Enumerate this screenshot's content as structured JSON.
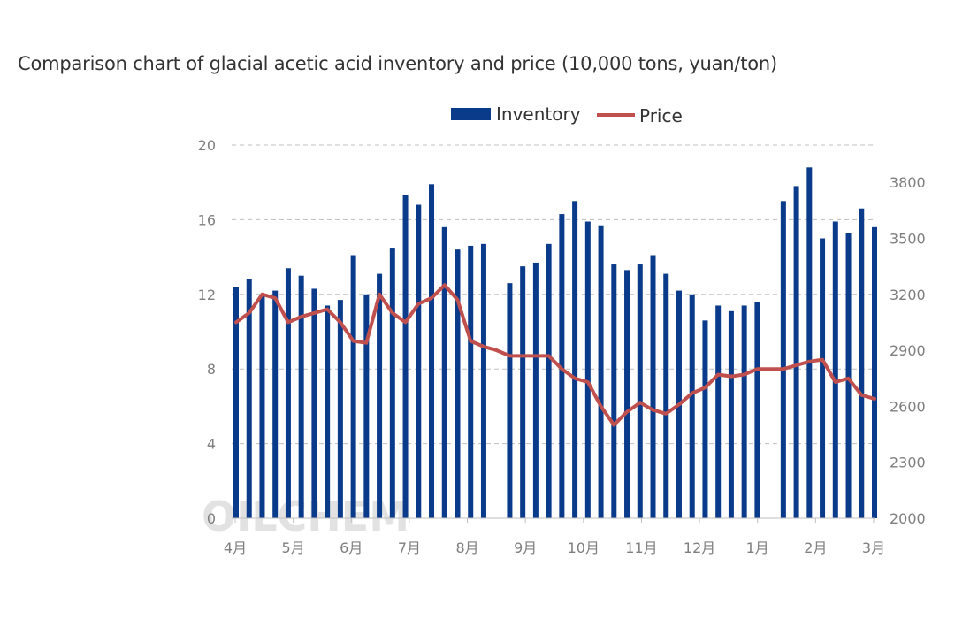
{
  "title": "Comparison chart of glacial acetic acid inventory and price (10,000 tons, yuan/ton)",
  "watermark": "OILCHEM",
  "chart_data": {
    "type": "bar+line",
    "title": "Comparison chart of glacial acetic acid inventory and price (10,000 tons, yuan/ton)",
    "legend": [
      "Inventory",
      "Price"
    ],
    "legend_position": "top",
    "colors": {
      "bar": "#0a3a8a",
      "line": "#c0504d",
      "grid": "#bfbfbf",
      "axis": "#7f7f7f"
    },
    "x_tick_labels": [
      "4月",
      "5月",
      "6月",
      "7月",
      "8月",
      "9月",
      "10月",
      "11月",
      "12月",
      "1月",
      "2月",
      "3月"
    ],
    "y_left": {
      "label": "Inventory",
      "range": [
        0,
        20
      ],
      "ticks": [
        0,
        4,
        8,
        12,
        16,
        20
      ]
    },
    "y_right": {
      "label": "Price",
      "range": [
        2000,
        4000
      ],
      "ticks": [
        2000,
        2300,
        2600,
        2900,
        3200,
        3500,
        3800
      ]
    },
    "inventory": [
      12.4,
      12.8,
      12.0,
      12.2,
      13.4,
      13.0,
      12.3,
      11.4,
      11.7,
      14.1,
      12.0,
      13.1,
      14.5,
      17.3,
      16.8,
      17.9,
      15.6,
      14.4,
      14.6,
      14.7,
      null,
      12.6,
      13.5,
      13.7,
      14.7,
      16.3,
      17.0,
      15.9,
      15.7,
      13.6,
      13.3,
      13.6,
      14.1,
      13.1,
      12.2,
      12.0,
      10.6,
      11.4,
      11.1,
      11.4,
      11.6,
      null,
      17.0,
      17.8,
      18.8,
      15.0,
      15.9,
      15.3,
      16.6,
      15.6
    ],
    "price": [
      3050,
      3100,
      3200,
      3180,
      3050,
      3080,
      3100,
      3120,
      3050,
      2950,
      2940,
      3200,
      3100,
      3050,
      3150,
      3180,
      3250,
      3170,
      2950,
      2920,
      2900,
      2870,
      2870,
      2870,
      2870,
      2800,
      2750,
      2730,
      2600,
      2500,
      2570,
      2620,
      2580,
      2560,
      2610,
      2670,
      2700,
      2770,
      2760,
      2770,
      2800,
      2800,
      2800,
      2820,
      2840,
      2850,
      2730,
      2750,
      2660,
      2640
    ]
  }
}
